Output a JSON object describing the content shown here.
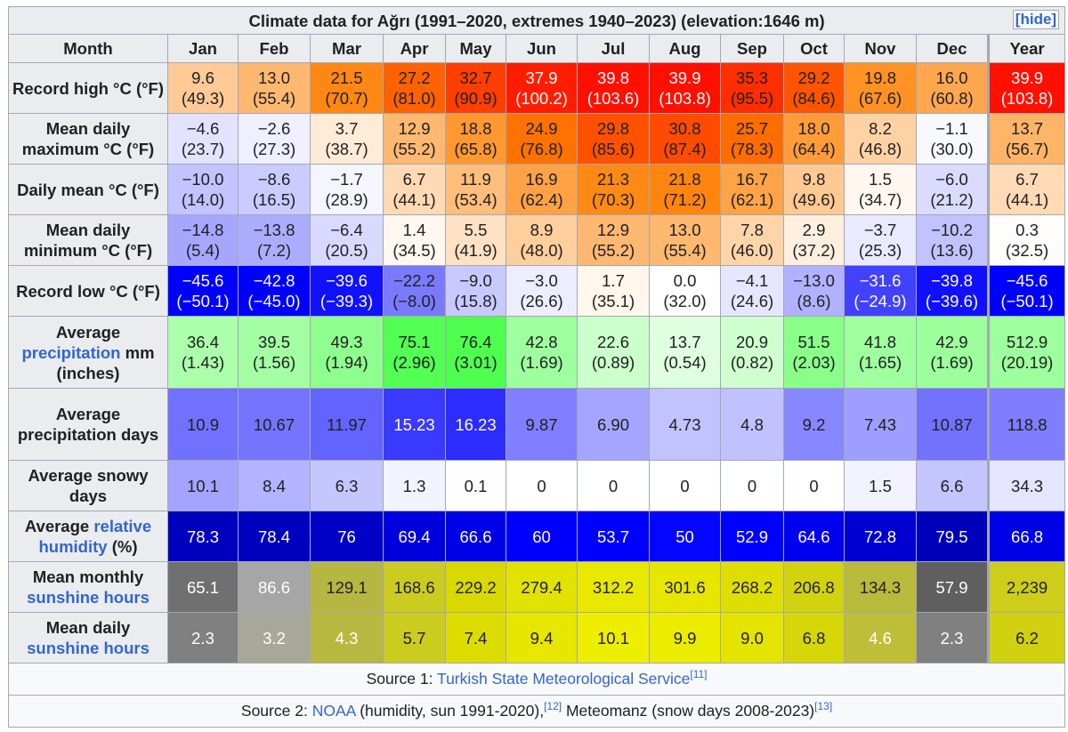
{
  "title": "Climate data for Ağrı (1991–2020, extremes 1940–2023) (elevation:1646 m)",
  "hide": "[hide]",
  "header": [
    "Month",
    "Jan",
    "Feb",
    "Mar",
    "Apr",
    "May",
    "Jun",
    "Jul",
    "Aug",
    "Sep",
    "Oct",
    "Nov",
    "Dec",
    "Year"
  ],
  "rows": [
    {
      "label": [
        {
          "text": "Record high °C (°F)"
        }
      ],
      "cells": [
        [
          "9.6",
          "(49.3)"
        ],
        [
          "13.0",
          "(55.4)"
        ],
        [
          "21.5",
          "(70.7)"
        ],
        [
          "27.2",
          "(81.0)"
        ],
        [
          "32.7",
          "(90.9)"
        ],
        [
          "37.9",
          "(100.2)"
        ],
        [
          "39.8",
          "(103.6)"
        ],
        [
          "39.9",
          "(103.8)"
        ],
        [
          "35.3",
          "(95.5)"
        ],
        [
          "29.2",
          "(84.6)"
        ],
        [
          "19.8",
          "(67.6)"
        ],
        [
          "16.0",
          "(60.8)"
        ],
        [
          "39.9",
          "(103.8)"
        ]
      ]
    },
    {
      "label": [
        {
          "text": "Mean daily maximum °C (°F)"
        }
      ],
      "cells": [
        [
          "−4.6",
          "(23.7)"
        ],
        [
          "−2.6",
          "(27.3)"
        ],
        [
          "3.7",
          "(38.7)"
        ],
        [
          "12.9",
          "(55.2)"
        ],
        [
          "18.8",
          "(65.8)"
        ],
        [
          "24.9",
          "(76.8)"
        ],
        [
          "29.8",
          "(85.6)"
        ],
        [
          "30.8",
          "(87.4)"
        ],
        [
          "25.7",
          "(78.3)"
        ],
        [
          "18.0",
          "(64.4)"
        ],
        [
          "8.2",
          "(46.8)"
        ],
        [
          "−1.1",
          "(30.0)"
        ],
        [
          "13.7",
          "(56.7)"
        ]
      ]
    },
    {
      "label": [
        {
          "text": "Daily mean °C (°F)"
        }
      ],
      "cells": [
        [
          "−10.0",
          "(14.0)"
        ],
        [
          "−8.6",
          "(16.5)"
        ],
        [
          "−1.7",
          "(28.9)"
        ],
        [
          "6.7",
          "(44.1)"
        ],
        [
          "11.9",
          "(53.4)"
        ],
        [
          "16.9",
          "(62.4)"
        ],
        [
          "21.3",
          "(70.3)"
        ],
        [
          "21.8",
          "(71.2)"
        ],
        [
          "16.7",
          "(62.1)"
        ],
        [
          "9.8",
          "(49.6)"
        ],
        [
          "1.5",
          "(34.7)"
        ],
        [
          "−6.0",
          "(21.2)"
        ],
        [
          "6.7",
          "(44.1)"
        ]
      ]
    },
    {
      "label": [
        {
          "text": "Mean daily minimum °C (°F)"
        }
      ],
      "cells": [
        [
          "−14.8",
          "(5.4)"
        ],
        [
          "−13.8",
          "(7.2)"
        ],
        [
          "−6.4",
          "(20.5)"
        ],
        [
          "1.4",
          "(34.5)"
        ],
        [
          "5.5",
          "(41.9)"
        ],
        [
          "8.9",
          "(48.0)"
        ],
        [
          "12.9",
          "(55.2)"
        ],
        [
          "13.0",
          "(55.4)"
        ],
        [
          "7.8",
          "(46.0)"
        ],
        [
          "2.9",
          "(37.2)"
        ],
        [
          "−3.7",
          "(25.3)"
        ],
        [
          "−10.2",
          "(13.6)"
        ],
        [
          "0.3",
          "(32.5)"
        ]
      ]
    },
    {
      "label": [
        {
          "text": "Record low °C (°F)"
        }
      ],
      "cells": [
        [
          "−45.6",
          "(−50.1)"
        ],
        [
          "−42.8",
          "(−45.0)"
        ],
        [
          "−39.6",
          "(−39.3)"
        ],
        [
          "−22.2",
          "(−8.0)"
        ],
        [
          "−9.0",
          "(15.8)"
        ],
        [
          "−3.0",
          "(26.6)"
        ],
        [
          "1.7",
          "(35.1)"
        ],
        [
          "0.0",
          "(32.0)"
        ],
        [
          "−4.1",
          "(24.6)"
        ],
        [
          "−13.0",
          "(8.6)"
        ],
        [
          "−31.6",
          "(−24.9)"
        ],
        [
          "−39.8",
          "(−39.6)"
        ],
        [
          "−45.6",
          "(−50.1)"
        ]
      ]
    },
    {
      "label": [
        {
          "text": "Average "
        },
        {
          "text": "precipitation",
          "link": true
        },
        {
          "text": " mm (inches)"
        }
      ],
      "cells": [
        [
          "36.4",
          "(1.43)"
        ],
        [
          "39.5",
          "(1.56)"
        ],
        [
          "49.3",
          "(1.94)"
        ],
        [
          "75.1",
          "(2.96)"
        ],
        [
          "76.4",
          "(3.01)"
        ],
        [
          "42.8",
          "(1.69)"
        ],
        [
          "22.6",
          "(0.89)"
        ],
        [
          "13.7",
          "(0.54)"
        ],
        [
          "20.9",
          "(0.82)"
        ],
        [
          "51.5",
          "(2.03)"
        ],
        [
          "41.8",
          "(1.65)"
        ],
        [
          "42.9",
          "(1.69)"
        ],
        [
          "512.9",
          "(20.19)"
        ]
      ]
    },
    {
      "label": [
        {
          "text": "Average precipitation days"
        }
      ],
      "cells": [
        [
          "10.9"
        ],
        [
          "10.67"
        ],
        [
          "11.97"
        ],
        [
          "15.23"
        ],
        [
          "16.23"
        ],
        [
          "9.87"
        ],
        [
          "6.90"
        ],
        [
          "4.73"
        ],
        [
          "4.8"
        ],
        [
          "9.2"
        ],
        [
          "7.43"
        ],
        [
          "10.87"
        ],
        [
          "118.8"
        ]
      ]
    },
    {
      "label": [
        {
          "text": "Average snowy days"
        }
      ],
      "cells": [
        [
          "10.1"
        ],
        [
          "8.4"
        ],
        [
          "6.3"
        ],
        [
          "1.3"
        ],
        [
          "0.1"
        ],
        [
          "0"
        ],
        [
          "0"
        ],
        [
          "0"
        ],
        [
          "0"
        ],
        [
          "0"
        ],
        [
          "1.5"
        ],
        [
          "6.6"
        ],
        [
          "34.3"
        ]
      ]
    },
    {
      "label": [
        {
          "text": "Average "
        },
        {
          "text": "relative humidity",
          "link": true
        },
        {
          "text": " (%)"
        }
      ],
      "cells": [
        [
          "78.3"
        ],
        [
          "78.4"
        ],
        [
          "76"
        ],
        [
          "69.4"
        ],
        [
          "66.6"
        ],
        [
          "60"
        ],
        [
          "53.7"
        ],
        [
          "50"
        ],
        [
          "52.9"
        ],
        [
          "64.6"
        ],
        [
          "72.8"
        ],
        [
          "79.5"
        ],
        [
          "66.8"
        ]
      ]
    },
    {
      "label": [
        {
          "text": "Mean monthly "
        },
        {
          "text": "sunshine hours",
          "link": true
        }
      ],
      "cells": [
        [
          "65.1"
        ],
        [
          "86.6"
        ],
        [
          "129.1"
        ],
        [
          "168.6"
        ],
        [
          "229.2"
        ],
        [
          "279.4"
        ],
        [
          "312.2"
        ],
        [
          "301.6"
        ],
        [
          "268.2"
        ],
        [
          "206.8"
        ],
        [
          "134.3"
        ],
        [
          "57.9"
        ],
        [
          "2,239"
        ]
      ]
    },
    {
      "label": [
        {
          "text": "Mean daily "
        },
        {
          "text": "sunshine hours",
          "link": true
        }
      ],
      "cells": [
        [
          "2.3"
        ],
        [
          "3.2"
        ],
        [
          "4.3"
        ],
        [
          "5.7"
        ],
        [
          "7.4"
        ],
        [
          "9.4"
        ],
        [
          "10.1"
        ],
        [
          "9.9"
        ],
        [
          "9.0"
        ],
        [
          "6.8"
        ],
        [
          "4.6"
        ],
        [
          "2.3"
        ],
        [
          "6.2"
        ]
      ]
    }
  ],
  "sources": [
    [
      {
        "text": "Source 1: "
      },
      {
        "text": "Turkish State Meteorological Service",
        "link": true
      },
      {
        "text": "[11]",
        "sup": true,
        "link": true
      }
    ],
    [
      {
        "text": "Source 2: "
      },
      {
        "text": "NOAA",
        "link": true
      },
      {
        "text": " (humidity, sun 1991-2020),"
      },
      {
        "text": "[12]",
        "sup": true,
        "link": true
      },
      {
        "text": " Meteomanz (snow days 2008-2023)"
      },
      {
        "text": "[13]",
        "sup": true,
        "link": true
      }
    ]
  ]
}
